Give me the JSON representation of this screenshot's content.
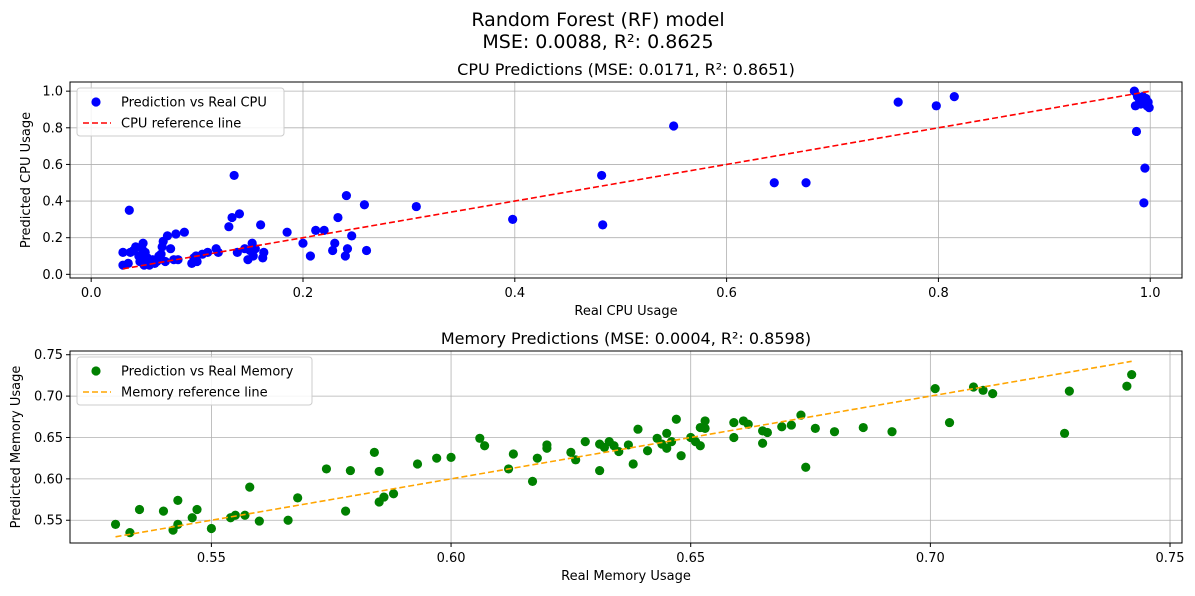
{
  "figure": {
    "title_line1": "Random Forest (RF) model",
    "title_line2": "MSE: 0.0088, R²: 0.8625"
  },
  "chart_data": [
    {
      "type": "scatter",
      "title": "CPU Predictions (MSE: 0.0171, R²: 0.8651)",
      "xlabel": "Real CPU Usage",
      "ylabel": "Predicted CPU Usage",
      "xlim": [
        -0.02,
        1.03
      ],
      "ylim": [
        -0.02,
        1.05
      ],
      "xticks": [
        0.0,
        0.2,
        0.4,
        0.6,
        0.8,
        1.0
      ],
      "xtick_labels": [
        "0.0",
        "0.2",
        "0.4",
        "0.6",
        "0.8",
        "1.0"
      ],
      "yticks": [
        0.0,
        0.2,
        0.4,
        0.6,
        0.8,
        1.0
      ],
      "ytick_labels": [
        "0.0",
        "0.2",
        "0.4",
        "0.6",
        "0.8",
        "1.0"
      ],
      "grid": true,
      "legend_position": "upper-left",
      "series": [
        {
          "name": "Prediction vs Real CPU",
          "kind": "scatter",
          "color": "#0000ff",
          "points": [
            [
              0.03,
              0.12
            ],
            [
              0.03,
              0.05
            ],
            [
              0.035,
              0.06
            ],
            [
              0.036,
              0.35
            ],
            [
              0.037,
              0.12
            ],
            [
              0.04,
              0.13
            ],
            [
              0.042,
              0.15
            ],
            [
              0.045,
              0.1
            ],
            [
              0.046,
              0.07
            ],
            [
              0.048,
              0.14
            ],
            [
              0.049,
              0.17
            ],
            [
              0.05,
              0.05
            ],
            [
              0.051,
              0.12
            ],
            [
              0.053,
              0.09
            ],
            [
              0.055,
              0.05
            ],
            [
              0.058,
              0.08
            ],
            [
              0.06,
              0.06
            ],
            [
              0.062,
              0.07
            ],
            [
              0.064,
              0.1
            ],
            [
              0.066,
              0.11
            ],
            [
              0.067,
              0.15
            ],
            [
              0.068,
              0.18
            ],
            [
              0.07,
              0.07
            ],
            [
              0.072,
              0.21
            ],
            [
              0.075,
              0.14
            ],
            [
              0.078,
              0.08
            ],
            [
              0.08,
              0.22
            ],
            [
              0.082,
              0.08
            ],
            [
              0.088,
              0.23
            ],
            [
              0.095,
              0.06
            ],
            [
              0.097,
              0.09
            ],
            [
              0.099,
              0.1
            ],
            [
              0.1,
              0.07
            ],
            [
              0.105,
              0.11
            ],
            [
              0.11,
              0.12
            ],
            [
              0.118,
              0.14
            ],
            [
              0.12,
              0.12
            ],
            [
              0.13,
              0.26
            ],
            [
              0.133,
              0.31
            ],
            [
              0.135,
              0.54
            ],
            [
              0.138,
              0.12
            ],
            [
              0.14,
              0.33
            ],
            [
              0.145,
              0.14
            ],
            [
              0.148,
              0.08
            ],
            [
              0.15,
              0.13
            ],
            [
              0.152,
              0.17
            ],
            [
              0.153,
              0.1
            ],
            [
              0.155,
              0.14
            ],
            [
              0.16,
              0.27
            ],
            [
              0.162,
              0.09
            ],
            [
              0.163,
              0.12
            ],
            [
              0.185,
              0.23
            ],
            [
              0.2,
              0.17
            ],
            [
              0.207,
              0.1
            ],
            [
              0.212,
              0.24
            ],
            [
              0.22,
              0.24
            ],
            [
              0.228,
              0.13
            ],
            [
              0.23,
              0.17
            ],
            [
              0.233,
              0.31
            ],
            [
              0.24,
              0.1
            ],
            [
              0.241,
              0.43
            ],
            [
              0.242,
              0.14
            ],
            [
              0.246,
              0.21
            ],
            [
              0.258,
              0.38
            ],
            [
              0.26,
              0.13
            ],
            [
              0.307,
              0.37
            ],
            [
              0.398,
              0.3
            ],
            [
              0.482,
              0.54
            ],
            [
              0.483,
              0.27
            ],
            [
              0.55,
              0.81
            ],
            [
              0.645,
              0.5
            ],
            [
              0.675,
              0.5
            ],
            [
              0.762,
              0.94
            ],
            [
              0.798,
              0.92
            ],
            [
              0.815,
              0.97
            ],
            [
              0.985,
              1.0
            ],
            [
              0.986,
              0.92
            ],
            [
              0.987,
              0.78
            ],
            [
              0.988,
              0.97
            ],
            [
              0.99,
              0.95
            ],
            [
              0.991,
              0.93
            ],
            [
              0.993,
              0.97
            ],
            [
              0.994,
              0.39
            ],
            [
              0.995,
              0.58
            ],
            [
              0.996,
              0.96
            ],
            [
              0.997,
              0.92
            ],
            [
              0.998,
              0.94
            ],
            [
              0.999,
              0.91
            ]
          ]
        },
        {
          "name": "CPU reference line",
          "kind": "dashed-line",
          "color": "#ff0000",
          "points": [
            [
              0.03,
              0.03
            ],
            [
              0.999,
              0.999
            ]
          ]
        }
      ]
    },
    {
      "type": "scatter",
      "title": "Memory Predictions (MSE: 0.0004, R²: 0.8598)",
      "xlabel": "Real Memory Usage",
      "ylabel": "Predicted Memory Usage",
      "xlim": [
        0.5205,
        0.7525
      ],
      "ylim": [
        0.5225,
        0.7545
      ],
      "xticks": [
        0.55,
        0.6,
        0.65,
        0.7,
        0.75
      ],
      "xtick_labels": [
        "0.55",
        "0.60",
        "0.65",
        "0.70",
        "0.75"
      ],
      "yticks": [
        0.55,
        0.6,
        0.65,
        0.7,
        0.75
      ],
      "ytick_labels": [
        "0.55",
        "0.60",
        "0.65",
        "0.70",
        "0.75"
      ],
      "grid": true,
      "legend_position": "upper-left",
      "series": [
        {
          "name": "Prediction vs Real Memory",
          "kind": "scatter",
          "color": "#008000",
          "points": [
            [
              0.53,
              0.545
            ],
            [
              0.533,
              0.535
            ],
            [
              0.535,
              0.563
            ],
            [
              0.54,
              0.561
            ],
            [
              0.542,
              0.538
            ],
            [
              0.543,
              0.574
            ],
            [
              0.543,
              0.545
            ],
            [
              0.546,
              0.553
            ],
            [
              0.547,
              0.563
            ],
            [
              0.55,
              0.54
            ],
            [
              0.554,
              0.553
            ],
            [
              0.555,
              0.556
            ],
            [
              0.557,
              0.556
            ],
            [
              0.558,
              0.59
            ],
            [
              0.56,
              0.549
            ],
            [
              0.566,
              0.55
            ],
            [
              0.568,
              0.577
            ],
            [
              0.574,
              0.612
            ],
            [
              0.578,
              0.561
            ],
            [
              0.579,
              0.61
            ],
            [
              0.584,
              0.632
            ],
            [
              0.585,
              0.609
            ],
            [
              0.586,
              0.578
            ],
            [
              0.585,
              0.572
            ],
            [
              0.588,
              0.582
            ],
            [
              0.593,
              0.618
            ],
            [
              0.597,
              0.625
            ],
            [
              0.6,
              0.626
            ],
            [
              0.606,
              0.649
            ],
            [
              0.607,
              0.64
            ],
            [
              0.612,
              0.612
            ],
            [
              0.613,
              0.63
            ],
            [
              0.617,
              0.597
            ],
            [
              0.618,
              0.625
            ],
            [
              0.62,
              0.641
            ],
            [
              0.62,
              0.637
            ],
            [
              0.625,
              0.632
            ],
            [
              0.626,
              0.623
            ],
            [
              0.628,
              0.645
            ],
            [
              0.631,
              0.642
            ],
            [
              0.631,
              0.61
            ],
            [
              0.632,
              0.638
            ],
            [
              0.633,
              0.645
            ],
            [
              0.634,
              0.64
            ],
            [
              0.635,
              0.633
            ],
            [
              0.637,
              0.641
            ],
            [
              0.638,
              0.618
            ],
            [
              0.639,
              0.66
            ],
            [
              0.641,
              0.634
            ],
            [
              0.643,
              0.649
            ],
            [
              0.644,
              0.642
            ],
            [
              0.645,
              0.655
            ],
            [
              0.645,
              0.637
            ],
            [
              0.646,
              0.645
            ],
            [
              0.647,
              0.672
            ],
            [
              0.648,
              0.628
            ],
            [
              0.65,
              0.65
            ],
            [
              0.651,
              0.645
            ],
            [
              0.652,
              0.662
            ],
            [
              0.652,
              0.64
            ],
            [
              0.653,
              0.67
            ],
            [
              0.653,
              0.661
            ],
            [
              0.659,
              0.65
            ],
            [
              0.659,
              0.668
            ],
            [
              0.661,
              0.67
            ],
            [
              0.662,
              0.666
            ],
            [
              0.665,
              0.658
            ],
            [
              0.665,
              0.643
            ],
            [
              0.666,
              0.656
            ],
            [
              0.669,
              0.663
            ],
            [
              0.671,
              0.665
            ],
            [
              0.673,
              0.677
            ],
            [
              0.674,
              0.614
            ],
            [
              0.676,
              0.661
            ],
            [
              0.68,
              0.657
            ],
            [
              0.686,
              0.662
            ],
            [
              0.692,
              0.657
            ],
            [
              0.701,
              0.709
            ],
            [
              0.704,
              0.668
            ],
            [
              0.709,
              0.711
            ],
            [
              0.711,
              0.707
            ],
            [
              0.713,
              0.703
            ],
            [
              0.728,
              0.655
            ],
            [
              0.729,
              0.706
            ],
            [
              0.741,
              0.712
            ],
            [
              0.742,
              0.726
            ]
          ]
        },
        {
          "name": "Memory reference line",
          "kind": "dashed-line",
          "color": "#ffa500",
          "points": [
            [
              0.53,
              0.53
            ],
            [
              0.742,
              0.742
            ]
          ]
        }
      ]
    }
  ]
}
